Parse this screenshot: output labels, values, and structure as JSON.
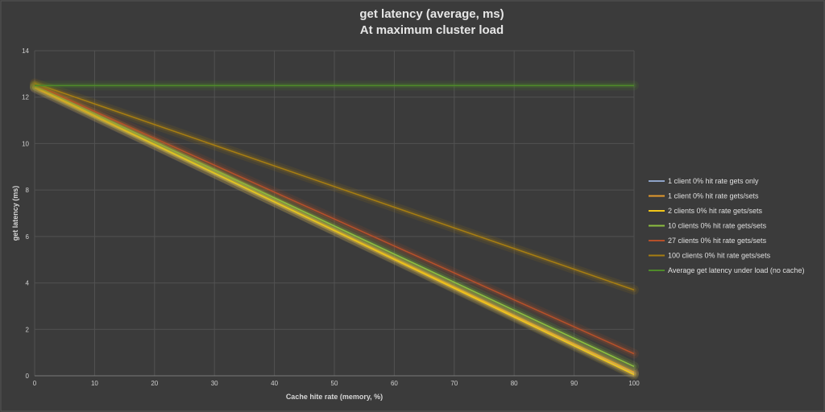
{
  "chart_data": {
    "type": "line",
    "title": "get latency (average, ms)",
    "subtitle": "At maximum cluster load",
    "xlabel": "Cache hite rate (memory, %)",
    "ylabel": "get latency (ms)",
    "xlim": [
      0,
      100
    ],
    "ylim": [
      0,
      14
    ],
    "x_ticks": [
      0,
      10,
      20,
      30,
      40,
      50,
      60,
      70,
      80,
      90,
      100
    ],
    "y_ticks": [
      0,
      2,
      4,
      6,
      8,
      10,
      12,
      14
    ],
    "grid": true,
    "legend_position": "right",
    "series": [
      {
        "name": "1 client 0% hit rate gets only",
        "color": "#8ea3c8",
        "x": [
          0,
          100
        ],
        "y": [
          12.4,
          0.1
        ]
      },
      {
        "name": "1 client 0% hit rate gets/sets",
        "color": "#e39a2c",
        "x": [
          0,
          100
        ],
        "y": [
          12.4,
          0.15
        ]
      },
      {
        "name": "2 clients 0% hit rate gets/sets",
        "color": "#f2c618",
        "x": [
          0,
          100
        ],
        "y": [
          12.45,
          0.05
        ]
      },
      {
        "name": "10 clients 0% hit rate gets/sets",
        "color": "#8cbf3f",
        "x": [
          0,
          100
        ],
        "y": [
          12.5,
          0.4
        ]
      },
      {
        "name": "27 clients 0% hit rate gets/sets",
        "color": "#b5502a",
        "x": [
          0,
          100
        ],
        "y": [
          12.55,
          0.95
        ]
      },
      {
        "name": "100 clients 0% hit rate gets/sets",
        "color": "#a67d12",
        "x": [
          0,
          100
        ],
        "y": [
          12.6,
          3.7
        ]
      },
      {
        "name": "Average get latency under load (no cache)",
        "color": "#4e8a2a",
        "x": [
          0,
          100
        ],
        "y": [
          12.5,
          12.5
        ]
      }
    ]
  }
}
